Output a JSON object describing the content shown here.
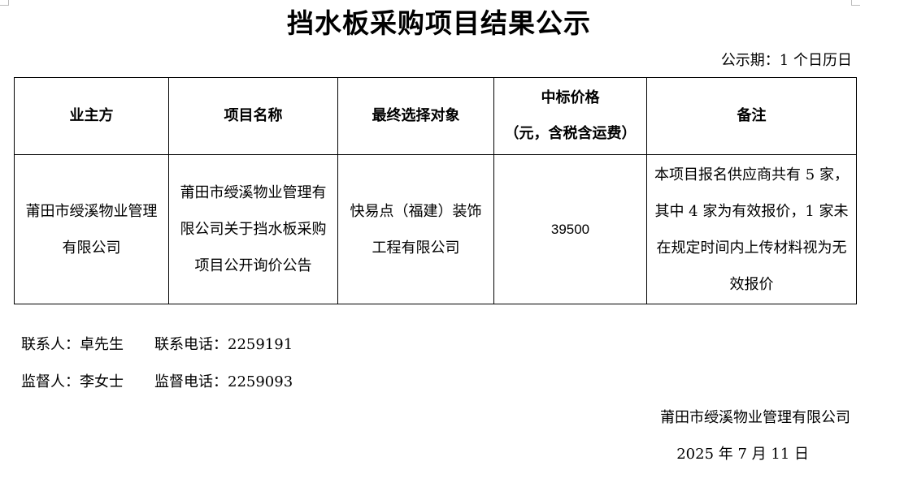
{
  "title": "挡水板采购项目结果公示",
  "period": "公示期：1 个日历日",
  "table": {
    "headers": [
      "业主方",
      "项目名称",
      "最终选择对象",
      "中标价格",
      "备注"
    ],
    "price_header_sub": "（元，含税含运费）",
    "rows": [
      {
        "owner": "莆田市绶溪物业管理有限公司",
        "project": "莆田市绶溪物业管理有限公司关于挡水板采购项目公开询价公告",
        "winner": "快易点（福建）装饰工程有限公司",
        "price": "39500",
        "note": "本项目报名供应商共有 5 家，其中 4 家为有效报价，1 家未在规定时间内上传材料视为无效报价"
      }
    ]
  },
  "contacts": [
    {
      "person_label": "联系人：",
      "person": "卓先生",
      "phone_label": "联系电话：",
      "phone": "2259191"
    },
    {
      "person_label": "监督人：",
      "person": "李女士",
      "phone_label": "监督电话：",
      "phone": "2259093"
    }
  ],
  "organization": "莆田市绶溪物业管理有限公司",
  "date": "2025 年 7 月 11 日"
}
